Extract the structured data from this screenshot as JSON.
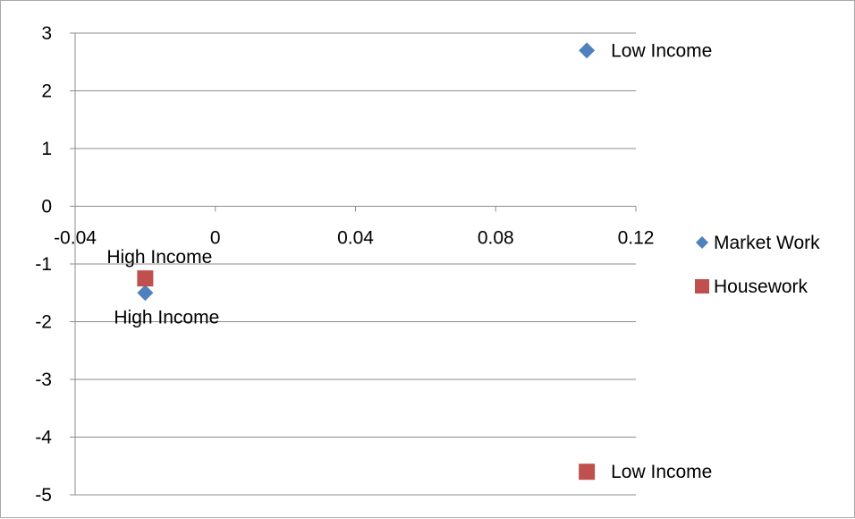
{
  "chart_data": {
    "type": "scatter",
    "title": "",
    "xlabel": "",
    "ylabel": "",
    "xlim": [
      -0.04,
      0.12
    ],
    "ylim": [
      -5,
      3
    ],
    "x_ticks": [
      -0.04,
      0,
      0.04,
      0.08,
      0.12
    ],
    "x_tick_labels": [
      "-0.04",
      "0",
      "0.04",
      "0.08",
      "0.12"
    ],
    "y_ticks": [
      3,
      2,
      1,
      0,
      -1,
      -2,
      -3,
      -4,
      -5
    ],
    "y_tick_labels": [
      "3",
      "2",
      "1",
      "0",
      "-1",
      "-2",
      "-3",
      "-4",
      "-5"
    ],
    "grid": "horizontal",
    "legend_position": "right",
    "series": [
      {
        "name": "Market Work",
        "marker": "diamond",
        "color": "#4F81BD",
        "points": [
          {
            "x": 0.106,
            "y": 2.7,
            "label": "Low Income"
          },
          {
            "x": -0.02,
            "y": -1.5,
            "label": "High Income"
          }
        ]
      },
      {
        "name": "Housework",
        "marker": "square",
        "color": "#C0504D",
        "points": [
          {
            "x": -0.02,
            "y": -1.25,
            "label": "High Income"
          },
          {
            "x": 0.106,
            "y": -4.6,
            "label": "Low Income"
          }
        ]
      }
    ]
  }
}
